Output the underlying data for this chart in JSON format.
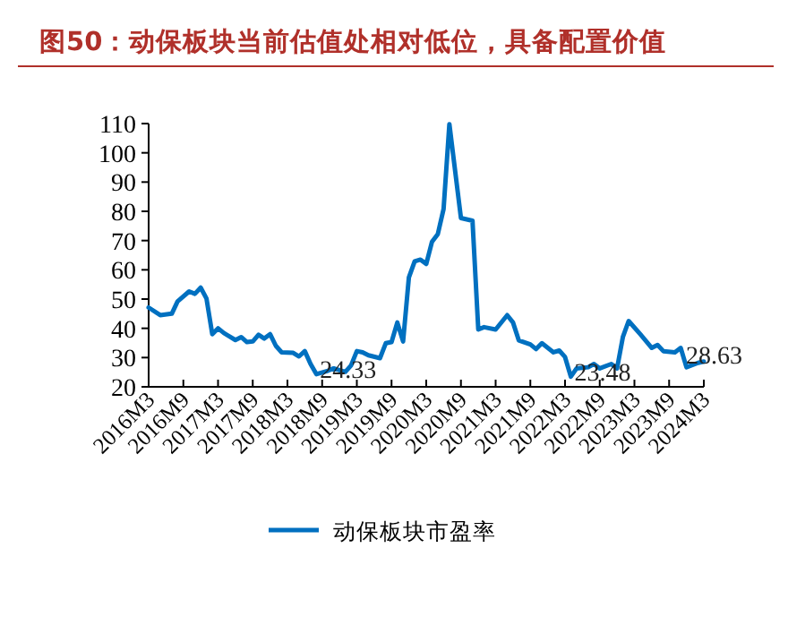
{
  "chart_data": {
    "type": "line",
    "title": "图50：动保板块当前估值处相对低位，具备配置价值",
    "x": [
      "2016-03",
      "2016-05",
      "2016-07",
      "2016-08",
      "2016-10",
      "2016-11",
      "2016-12",
      "2017-01",
      "2017-02",
      "2017-03",
      "2017-04",
      "2017-06",
      "2017-07",
      "2017-08",
      "2017-09",
      "2017-10",
      "2017-11",
      "2017-12",
      "2018-01",
      "2018-02",
      "2018-04",
      "2018-05",
      "2018-06",
      "2018-07",
      "2018-08",
      "2018-10",
      "2018-11",
      "2019-01",
      "2019-02",
      "2019-03",
      "2019-04",
      "2019-05",
      "2019-07",
      "2019-08",
      "2019-09",
      "2019-10",
      "2019-11",
      "2019-12",
      "2020-01",
      "2020-02",
      "2020-03",
      "2020-04",
      "2020-05",
      "2020-06",
      "2020-07",
      "2020-09",
      "2020-11",
      "2020-12",
      "2021-01",
      "2021-03",
      "2021-05",
      "2021-06",
      "2021-07",
      "2021-09",
      "2021-10",
      "2021-11",
      "2022-01",
      "2022-02",
      "2022-03",
      "2022-04",
      "2022-05",
      "2022-07",
      "2022-08",
      "2022-09",
      "2022-11",
      "2022-12",
      "2023-01",
      "2023-02",
      "2023-04",
      "2023-06",
      "2023-07",
      "2023-08",
      "2023-10",
      "2023-11",
      "2023-12",
      "2024-02",
      "2024-03"
    ],
    "series": [
      {
        "name": "动保板块市盈率",
        "color": "#0070c0",
        "values": [
          47.1,
          44.5,
          45,
          49.2,
          52.6,
          51.8,
          53.9,
          50.2,
          38,
          40,
          38.4,
          36,
          37,
          35.3,
          35.5,
          37.8,
          36.5,
          38,
          34,
          31.8,
          31.6,
          30.4,
          32.2,
          27.8,
          24.33,
          25.5,
          26.3,
          25.1,
          27.3,
          32.2,
          31.8,
          30.8,
          29.8,
          34.9,
          35.3,
          42,
          35.5,
          57.4,
          62.9,
          63.5,
          62,
          69.6,
          72.2,
          80.8,
          109.8,
          77.7,
          76.8,
          39.6,
          40.4,
          39.6,
          44.5,
          42,
          35.9,
          34.5,
          32.9,
          34.9,
          31.8,
          32.4,
          30.2,
          23.48,
          26.3,
          26.7,
          27.8,
          26.3,
          27.8,
          26.3,
          37,
          42.5,
          38,
          33.3,
          34.3,
          32.2,
          31.8,
          33.3,
          26.7,
          28.2,
          28.63
        ]
      }
    ],
    "xlim": [
      "2016-03",
      "2024-03"
    ],
    "xticks": [
      {
        "value": "2016-03",
        "label": "2016M3"
      },
      {
        "value": "2016-09",
        "label": "2016M9"
      },
      {
        "value": "2017-03",
        "label": "2017M3"
      },
      {
        "value": "2017-09",
        "label": "2017M9"
      },
      {
        "value": "2018-03",
        "label": "2018M3"
      },
      {
        "value": "2018-09",
        "label": "2018M9"
      },
      {
        "value": "2019-03",
        "label": "2019M3"
      },
      {
        "value": "2019-09",
        "label": "2019M9"
      },
      {
        "value": "2020-03",
        "label": "2020M3"
      },
      {
        "value": "2020-09",
        "label": "2020M9"
      },
      {
        "value": "2021-03",
        "label": "2021M3"
      },
      {
        "value": "2021-09",
        "label": "2021M9"
      },
      {
        "value": "2022-03",
        "label": "2022M3"
      },
      {
        "value": "2022-09",
        "label": "2022M9"
      },
      {
        "value": "2023-03",
        "label": "2023M3"
      },
      {
        "value": "2023-09",
        "label": "2023M9"
      },
      {
        "value": "2024-03",
        "label": "2024M3"
      }
    ],
    "ylim": [
      20,
      110
    ],
    "yticks": [
      20,
      30,
      40,
      50,
      60,
      70,
      80,
      90,
      100,
      110
    ],
    "legend": "bottom",
    "annotations": [
      {
        "text": "24.33",
        "x": "2018-08",
        "y": 24.33
      },
      {
        "text": "23.48",
        "x": "2022-04",
        "y": 23.48
      },
      {
        "text": "28.63",
        "x": "2024-03",
        "y": 28.63
      }
    ]
  }
}
